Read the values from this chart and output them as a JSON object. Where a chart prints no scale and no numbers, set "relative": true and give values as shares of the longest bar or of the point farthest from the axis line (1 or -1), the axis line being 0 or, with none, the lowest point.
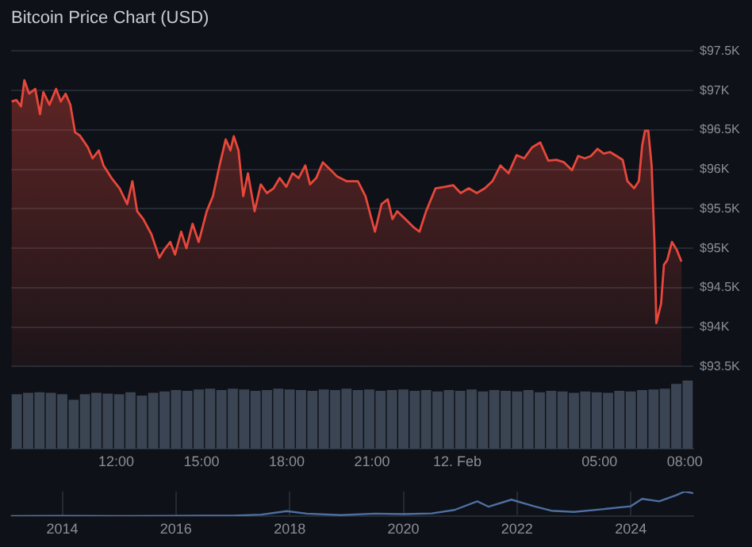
{
  "chart_data": [
    {
      "type": "area",
      "title": "Bitcoin Price Chart (USD)",
      "xlim": [
        "--02-11T08:18",
        "--02-12T08:18"
      ],
      "ylim": [
        93500,
        97500
      ],
      "yticks": [
        {
          "value": 93500,
          "label": "$93.5K"
        },
        {
          "value": 94000,
          "label": "$94K"
        },
        {
          "value": 94500,
          "label": "$94.5K"
        },
        {
          "value": 95000,
          "label": "$95K"
        },
        {
          "value": 95500,
          "label": "$95.5K"
        },
        {
          "value": 96000,
          "label": "$96K"
        },
        {
          "value": 96500,
          "label": "$96.5K"
        },
        {
          "value": 97000,
          "label": "$97K"
        },
        {
          "value": 97500,
          "label": "$97.5K"
        }
      ],
      "tick_labels": "y",
      "grid": "y",
      "series": [
        {
          "color": "#e8473b",
          "x": [
            "--02-11T08:19",
            "--02-11T08:29",
            "--02-11T08:39",
            "--02-11T08:46",
            "--02-11T08:56",
            "--02-11T09:09",
            "--02-11T09:19",
            "--02-11T09:26",
            "--02-11T09:39",
            "--02-11T09:53",
            "--02-11T10:03",
            "--02-11T10:13",
            "--02-11T10:23",
            "--02-11T10:33",
            "--02-11T10:43",
            "--02-11T11:00",
            "--02-11T11:10",
            "--02-11T11:23",
            "--02-11T11:33",
            "--02-11T11:50",
            "--02-11T12:07",
            "--02-11T12:23",
            "--02-11T12:34",
            "--02-11T12:44",
            "--02-11T12:57",
            "--02-11T13:14",
            "--02-11T13:31",
            "--02-11T13:41",
            "--02-11T13:54",
            "--02-11T14:04",
            "--02-11T14:17",
            "--02-11T14:28",
            "--02-11T14:41",
            "--02-11T14:54",
            "--02-11T15:11",
            "--02-11T15:24",
            "--02-11T15:38",
            "--02-11T15:51",
            "--02-11T16:01",
            "--02-11T16:08",
            "--02-11T16:18",
            "--02-11T16:28",
            "--02-11T16:38",
            "--02-11T16:52",
            "--02-11T17:05",
            "--02-11T17:18",
            "--02-11T17:32",
            "--02-11T17:45",
            "--02-11T17:59",
            "--02-11T18:12",
            "--02-11T18:25",
            "--02-11T18:39",
            "--02-11T18:49",
            "--02-11T19:02",
            "--02-11T19:16",
            "--02-11T19:33",
            "--02-11T19:46",
            "--02-11T20:06",
            "--02-11T20:30",
            "--02-11T20:46",
            "--02-11T21:06",
            "--02-11T21:20",
            "--02-11T21:33",
            "--02-11T21:43",
            "--02-11T21:53",
            "--02-11T22:10",
            "--02-11T22:27",
            "--02-11T22:40",
            "--02-11T22:54",
            "--02-11T23:14",
            "--02-11T23:34",
            "--02-11T23:51",
            "--02-12T00:07",
            "--02-12T00:24",
            "--02-12T00:41",
            "--02-12T00:58",
            "--02-12T01:14",
            "--02-12T01:31",
            "--02-12T01:48",
            "--02-12T02:05",
            "--02-12T02:21",
            "--02-12T02:38",
            "--02-12T02:55",
            "--02-12T03:12",
            "--02-12T03:29",
            "--02-12T03:45",
            "--02-12T04:02",
            "--02-12T04:15",
            "--02-12T04:29",
            "--02-12T04:42",
            "--02-12T04:56",
            "--02-12T05:09",
            "--02-12T05:22",
            "--02-12T05:36",
            "--02-12T05:49",
            "--02-12T05:59",
            "--02-12T06:13",
            "--02-12T06:23",
            "--02-12T06:30",
            "--02-12T06:36",
            "--02-12T06:43",
            "--02-12T06:50",
            "--02-12T06:56",
            "--02-12T07:00",
            "--02-12T07:10",
            "--02-12T07:16",
            "--02-12T07:23",
            "--02-12T07:33",
            "--02-12T07:43",
            "--02-12T07:53"
          ],
          "values": [
            96860,
            96880,
            96800,
            97130,
            96960,
            97020,
            96700,
            96980,
            96820,
            97020,
            96860,
            96960,
            96820,
            96470,
            96430,
            96280,
            96140,
            96240,
            96050,
            95890,
            95760,
            95560,
            95850,
            95470,
            95370,
            95180,
            94880,
            94980,
            95080,
            94920,
            95210,
            95000,
            95310,
            95080,
            95470,
            95660,
            96050,
            96380,
            96240,
            96420,
            96240,
            95660,
            95950,
            95470,
            95810,
            95700,
            95760,
            95890,
            95780,
            95950,
            95890,
            96050,
            95810,
            95890,
            96090,
            95990,
            95910,
            95850,
            95850,
            95660,
            95210,
            95560,
            95620,
            95370,
            95470,
            95370,
            95270,
            95210,
            95470,
            95760,
            95780,
            95800,
            95700,
            95760,
            95700,
            95760,
            95850,
            96050,
            95950,
            96180,
            96140,
            96280,
            96340,
            96110,
            96120,
            96090,
            95990,
            96170,
            96140,
            96170,
            96260,
            96200,
            96220,
            96170,
            96120,
            95850,
            95760,
            95850,
            96300,
            96490,
            96490,
            96050,
            95080,
            94050,
            94300,
            94790,
            94850,
            95080,
            94980,
            94830
          ]
        }
      ]
    },
    {
      "type": "bar",
      "relative": true,
      "xlim": [
        "--02-11T08:18",
        "--02-12T08:18"
      ],
      "xticks": [
        {
          "value": "--02-11T12:00",
          "label": "12:00"
        },
        {
          "value": "--02-11T15:00",
          "label": "15:00"
        },
        {
          "value": "--02-11T18:00",
          "label": "18:00"
        },
        {
          "value": "--02-11T21:00",
          "label": "21:00"
        },
        {
          "value": "--02-12T00:00",
          "label": "12. Feb"
        },
        {
          "value": "--02-12T05:00",
          "label": "05:00"
        },
        {
          "value": "--02-12T08:00",
          "label": "08:00"
        }
      ],
      "tick_labels": "x",
      "series": [
        {
          "color": "#3a4452",
          "x": [
            "--02-11T08:30",
            "--02-11T08:54",
            "--02-11T09:18",
            "--02-11T09:42",
            "--02-11T10:06",
            "--02-11T10:30",
            "--02-11T10:54",
            "--02-11T11:18",
            "--02-11T11:42",
            "--02-11T12:06",
            "--02-11T12:30",
            "--02-11T12:54",
            "--02-11T13:18",
            "--02-11T13:42",
            "--02-11T14:06",
            "--02-11T14:30",
            "--02-11T14:54",
            "--02-11T15:18",
            "--02-11T15:42",
            "--02-11T16:06",
            "--02-11T16:30",
            "--02-11T16:54",
            "--02-11T17:18",
            "--02-11T17:42",
            "--02-11T18:06",
            "--02-11T18:30",
            "--02-11T18:54",
            "--02-11T19:18",
            "--02-11T19:42",
            "--02-11T20:06",
            "--02-11T20:30",
            "--02-11T20:54",
            "--02-11T21:18",
            "--02-11T21:42",
            "--02-11T22:06",
            "--02-11T22:30",
            "--02-11T22:54",
            "--02-11T23:18",
            "--02-11T23:42",
            "--02-12T00:06",
            "--02-12T00:30",
            "--02-12T00:54",
            "--02-12T01:18",
            "--02-12T01:42",
            "--02-12T02:06",
            "--02-12T02:30",
            "--02-12T02:54",
            "--02-12T03:18",
            "--02-12T03:42",
            "--02-12T04:06",
            "--02-12T04:30",
            "--02-12T04:54",
            "--02-12T05:18",
            "--02-12T05:42",
            "--02-12T06:06",
            "--02-12T06:30",
            "--02-12T06:54",
            "--02-12T07:18",
            "--02-12T07:42",
            "--02-12T08:06"
          ],
          "values": [
            0.8,
            0.82,
            0.83,
            0.82,
            0.8,
            0.72,
            0.8,
            0.82,
            0.81,
            0.8,
            0.83,
            0.78,
            0.82,
            0.84,
            0.86,
            0.85,
            0.87,
            0.88,
            0.86,
            0.88,
            0.87,
            0.85,
            0.86,
            0.88,
            0.87,
            0.86,
            0.85,
            0.87,
            0.86,
            0.88,
            0.86,
            0.87,
            0.85,
            0.86,
            0.87,
            0.85,
            0.86,
            0.84,
            0.86,
            0.85,
            0.87,
            0.84,
            0.86,
            0.85,
            0.84,
            0.86,
            0.83,
            0.85,
            0.84,
            0.82,
            0.84,
            0.83,
            0.82,
            0.85,
            0.84,
            0.86,
            0.87,
            0.88,
            0.95,
            1.0
          ]
        }
      ]
    },
    {
      "type": "line",
      "relative": true,
      "xlim": [
        2013.1,
        2025.1
      ],
      "xticks": [
        2014,
        2016,
        2018,
        2020,
        2022,
        2024
      ],
      "tick_labels": "x",
      "grid": "x",
      "series": [
        {
          "color": "#4e6fa3",
          "x": [
            2013.1,
            2014.0,
            2015.0,
            2016.0,
            2017.0,
            2017.5,
            2017.95,
            2018.3,
            2018.9,
            2019.5,
            2020.0,
            2020.5,
            2020.9,
            2021.3,
            2021.5,
            2021.9,
            2022.3,
            2022.6,
            2023.0,
            2023.5,
            2024.0,
            2024.2,
            2024.5,
            2024.8,
            2024.95,
            2025.1
          ],
          "values": [
            0.0,
            0.01,
            0.0,
            0.01,
            0.02,
            0.06,
            0.2,
            0.1,
            0.04,
            0.1,
            0.08,
            0.11,
            0.25,
            0.6,
            0.38,
            0.67,
            0.4,
            0.22,
            0.17,
            0.28,
            0.4,
            0.7,
            0.6,
            0.85,
            1.0,
            0.93
          ]
        }
      ]
    }
  ]
}
